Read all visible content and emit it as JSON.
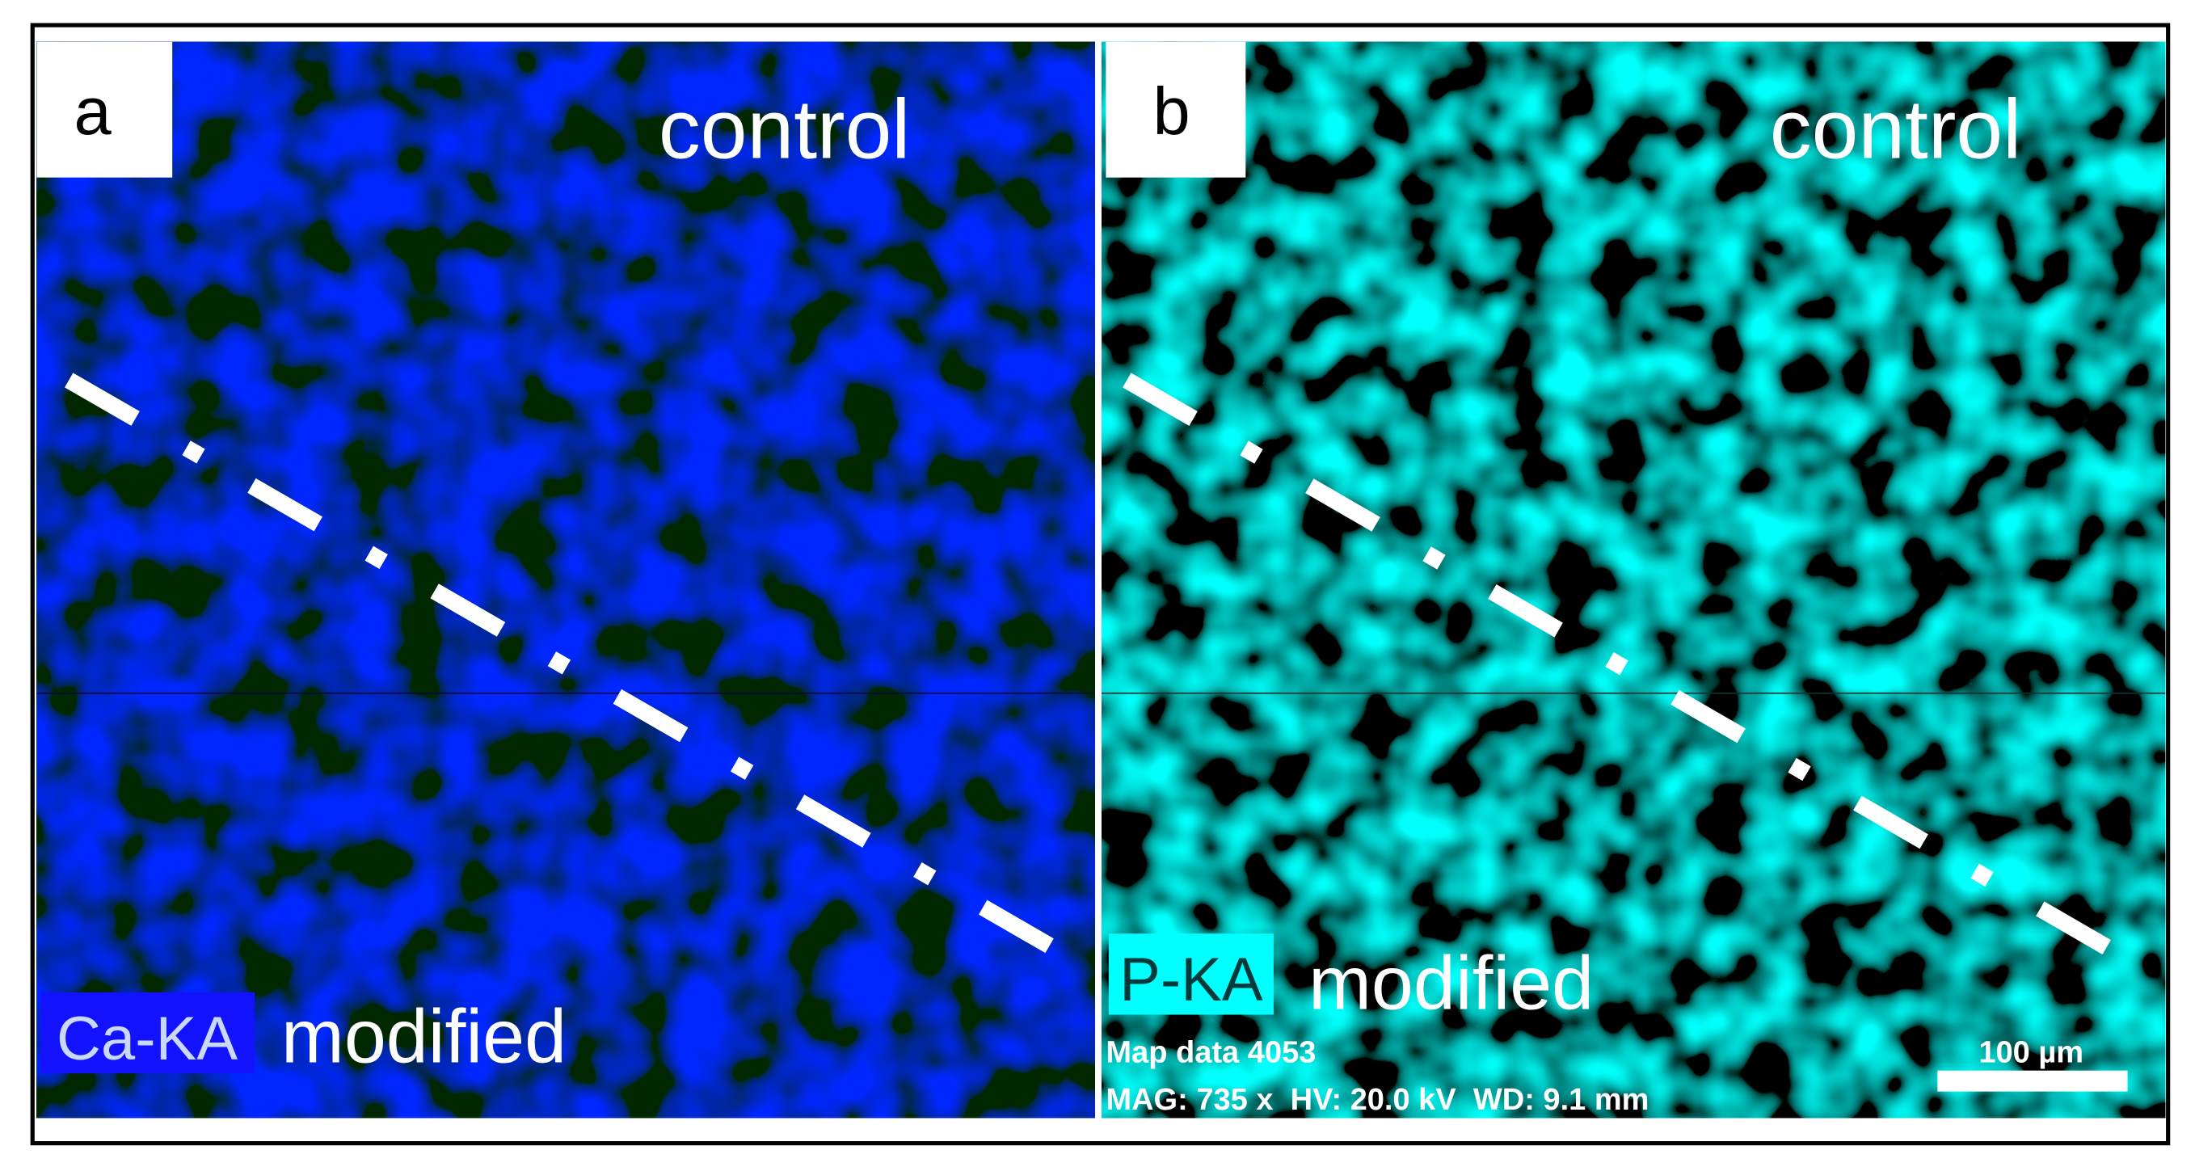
{
  "panels": [
    {
      "letter": "a",
      "top_label": "control",
      "element": "Ca-KA",
      "bottom_label": "modified"
    },
    {
      "letter": "b",
      "top_label": "control",
      "element": "P-KA",
      "bottom_label": "modified",
      "info": {
        "map": "Map data 4053",
        "params": "MAG: 735 x  HV: 20.0 kV  WD: 9.1 mm",
        "scale": "100 µm"
      }
    }
  ]
}
